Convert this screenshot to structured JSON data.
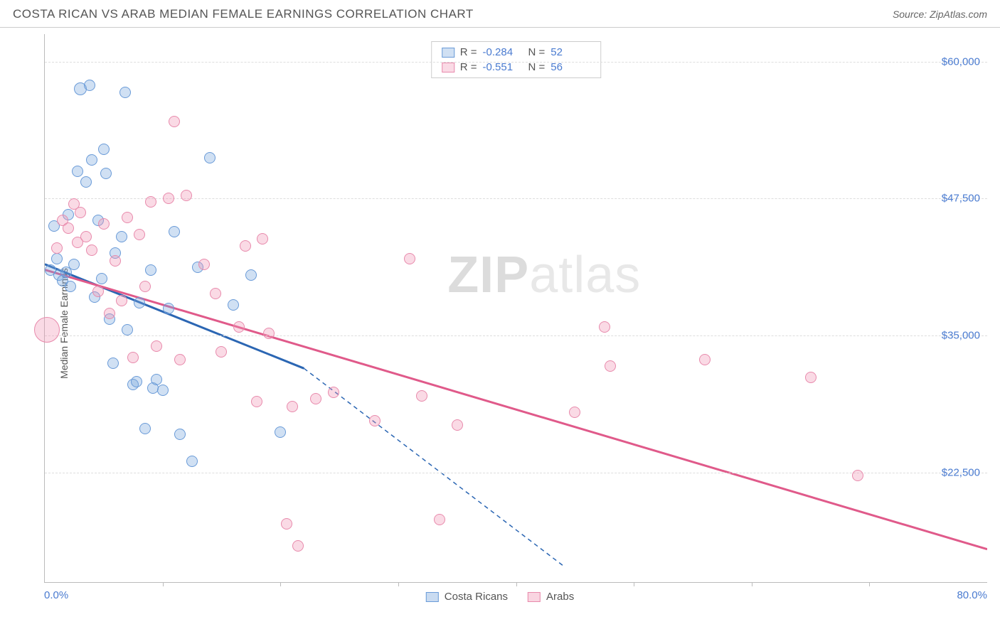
{
  "header": {
    "title": "COSTA RICAN VS ARAB MEDIAN FEMALE EARNINGS CORRELATION CHART",
    "source_prefix": "Source: ",
    "source": "ZipAtlas.com"
  },
  "chart": {
    "type": "scatter",
    "ylabel": "Median Female Earnings",
    "watermark_bold": "ZIP",
    "watermark_rest": "atlas",
    "xlim": [
      0,
      80
    ],
    "ylim": [
      12500,
      62500
    ],
    "xaxis": {
      "min_label": "0.0%",
      "max_label": "80.0%",
      "tick_positions": [
        10,
        20,
        30,
        40,
        50,
        60,
        70
      ]
    },
    "yaxis": {
      "ticks": [
        22500,
        35000,
        47500,
        60000
      ],
      "tick_labels": [
        "$22,500",
        "$35,000",
        "$47,500",
        "$60,000"
      ],
      "label_color": "#4a7bd0",
      "grid_color": "#dddddd"
    },
    "series": [
      {
        "name": "Costa Ricans",
        "fill": "rgba(120,165,220,0.35)",
        "stroke": "#6a9bd8",
        "trend_color": "#2b66b3",
        "r_label": "R =",
        "r_value": "-0.284",
        "n_label": "N =",
        "n_value": "52",
        "trend": {
          "x1": 0,
          "y1": 41500,
          "x2_solid": 22,
          "y2_solid": 32000,
          "x2": 44,
          "y2": 14000
        },
        "points": [
          {
            "x": 0.5,
            "y": 41000,
            "r": 8
          },
          {
            "x": 0.8,
            "y": 45000,
            "r": 8
          },
          {
            "x": 1.0,
            "y": 42000,
            "r": 8
          },
          {
            "x": 1.2,
            "y": 40500,
            "r": 8
          },
          {
            "x": 1.5,
            "y": 40000,
            "r": 8
          },
          {
            "x": 1.8,
            "y": 40800,
            "r": 8
          },
          {
            "x": 2.0,
            "y": 46000,
            "r": 8
          },
          {
            "x": 2.2,
            "y": 39500,
            "r": 8
          },
          {
            "x": 2.5,
            "y": 41500,
            "r": 8
          },
          {
            "x": 2.8,
            "y": 50000,
            "r": 8
          },
          {
            "x": 3.0,
            "y": 57500,
            "r": 9
          },
          {
            "x": 3.5,
            "y": 49000,
            "r": 8
          },
          {
            "x": 3.8,
            "y": 57800,
            "r": 8
          },
          {
            "x": 4.0,
            "y": 51000,
            "r": 8
          },
          {
            "x": 4.2,
            "y": 38500,
            "r": 8
          },
          {
            "x": 4.5,
            "y": 45500,
            "r": 8
          },
          {
            "x": 4.8,
            "y": 40200,
            "r": 8
          },
          {
            "x": 5.0,
            "y": 52000,
            "r": 8
          },
          {
            "x": 5.2,
            "y": 49800,
            "r": 8
          },
          {
            "x": 5.5,
            "y": 36500,
            "r": 8
          },
          {
            "x": 5.8,
            "y": 32500,
            "r": 8
          },
          {
            "x": 6.0,
            "y": 42500,
            "r": 8
          },
          {
            "x": 6.5,
            "y": 44000,
            "r": 8
          },
          {
            "x": 6.8,
            "y": 57200,
            "r": 8
          },
          {
            "x": 7.0,
            "y": 35500,
            "r": 8
          },
          {
            "x": 7.5,
            "y": 30500,
            "r": 8
          },
          {
            "x": 7.8,
            "y": 30800,
            "r": 8
          },
          {
            "x": 8.0,
            "y": 38000,
            "r": 8
          },
          {
            "x": 8.5,
            "y": 26500,
            "r": 8
          },
          {
            "x": 9.0,
            "y": 41000,
            "r": 8
          },
          {
            "x": 9.2,
            "y": 30200,
            "r": 8
          },
          {
            "x": 9.5,
            "y": 31000,
            "r": 8
          },
          {
            "x": 10.0,
            "y": 30000,
            "r": 8
          },
          {
            "x": 10.5,
            "y": 37500,
            "r": 8
          },
          {
            "x": 11.0,
            "y": 44500,
            "r": 8
          },
          {
            "x": 11.5,
            "y": 26000,
            "r": 8
          },
          {
            "x": 12.5,
            "y": 23500,
            "r": 8
          },
          {
            "x": 13.0,
            "y": 41200,
            "r": 8
          },
          {
            "x": 14.0,
            "y": 51200,
            "r": 8
          },
          {
            "x": 16.0,
            "y": 37800,
            "r": 8
          },
          {
            "x": 17.5,
            "y": 40500,
            "r": 8
          },
          {
            "x": 20.0,
            "y": 26200,
            "r": 8
          }
        ]
      },
      {
        "name": "Arabs",
        "fill": "rgba(240,150,180,0.35)",
        "stroke": "#e88aac",
        "trend_color": "#e05a8a",
        "r_label": "R =",
        "r_value": "-0.551",
        "n_label": "N =",
        "n_value": "56",
        "trend": {
          "x1": 0,
          "y1": 41000,
          "x2_solid": 80,
          "y2_solid": 15500,
          "x2": 80,
          "y2": 15500
        },
        "points": [
          {
            "x": 0.2,
            "y": 35500,
            "r": 18
          },
          {
            "x": 1.0,
            "y": 43000,
            "r": 8
          },
          {
            "x": 1.5,
            "y": 45500,
            "r": 8
          },
          {
            "x": 2.0,
            "y": 44800,
            "r": 8
          },
          {
            "x": 2.5,
            "y": 47000,
            "r": 8
          },
          {
            "x": 2.8,
            "y": 43500,
            "r": 8
          },
          {
            "x": 3.0,
            "y": 46200,
            "r": 8
          },
          {
            "x": 3.5,
            "y": 44000,
            "r": 8
          },
          {
            "x": 4.0,
            "y": 42800,
            "r": 8
          },
          {
            "x": 4.5,
            "y": 39000,
            "r": 8
          },
          {
            "x": 5.0,
            "y": 45200,
            "r": 8
          },
          {
            "x": 5.5,
            "y": 37000,
            "r": 8
          },
          {
            "x": 6.0,
            "y": 41800,
            "r": 8
          },
          {
            "x": 6.5,
            "y": 38200,
            "r": 8
          },
          {
            "x": 7.0,
            "y": 45800,
            "r": 8
          },
          {
            "x": 7.5,
            "y": 33000,
            "r": 8
          },
          {
            "x": 8.0,
            "y": 44200,
            "r": 8
          },
          {
            "x": 8.5,
            "y": 39500,
            "r": 8
          },
          {
            "x": 9.0,
            "y": 47200,
            "r": 8
          },
          {
            "x": 9.5,
            "y": 34000,
            "r": 8
          },
          {
            "x": 10.5,
            "y": 47500,
            "r": 8
          },
          {
            "x": 11.0,
            "y": 54500,
            "r": 8
          },
          {
            "x": 11.5,
            "y": 32800,
            "r": 8
          },
          {
            "x": 12.0,
            "y": 47800,
            "r": 8
          },
          {
            "x": 13.5,
            "y": 41500,
            "r": 8
          },
          {
            "x": 14.5,
            "y": 38800,
            "r": 8
          },
          {
            "x": 15.0,
            "y": 33500,
            "r": 8
          },
          {
            "x": 16.5,
            "y": 35800,
            "r": 8
          },
          {
            "x": 17.0,
            "y": 43200,
            "r": 8
          },
          {
            "x": 18.0,
            "y": 29000,
            "r": 8
          },
          {
            "x": 18.5,
            "y": 43800,
            "r": 8
          },
          {
            "x": 19.0,
            "y": 35200,
            "r": 8
          },
          {
            "x": 20.5,
            "y": 17800,
            "r": 8
          },
          {
            "x": 21.0,
            "y": 28500,
            "r": 8
          },
          {
            "x": 21.5,
            "y": 15800,
            "r": 8
          },
          {
            "x": 23.0,
            "y": 29200,
            "r": 8
          },
          {
            "x": 24.5,
            "y": 29800,
            "r": 8
          },
          {
            "x": 28.0,
            "y": 27200,
            "r": 8
          },
          {
            "x": 31.0,
            "y": 42000,
            "r": 8
          },
          {
            "x": 32.0,
            "y": 29500,
            "r": 8
          },
          {
            "x": 33.5,
            "y": 18200,
            "r": 8
          },
          {
            "x": 35.0,
            "y": 26800,
            "r": 8
          },
          {
            "x": 45.0,
            "y": 28000,
            "r": 8
          },
          {
            "x": 47.5,
            "y": 35800,
            "r": 8
          },
          {
            "x": 48.0,
            "y": 32200,
            "r": 8
          },
          {
            "x": 56.0,
            "y": 32800,
            "r": 8
          },
          {
            "x": 65.0,
            "y": 31200,
            "r": 8
          },
          {
            "x": 69.0,
            "y": 22200,
            "r": 8
          }
        ]
      }
    ],
    "bottom_legend": [
      {
        "label": "Costa Ricans",
        "fill": "rgba(120,165,220,0.4)",
        "stroke": "#6a9bd8"
      },
      {
        "label": "Arabs",
        "fill": "rgba(240,150,180,0.4)",
        "stroke": "#e88aac"
      }
    ]
  }
}
